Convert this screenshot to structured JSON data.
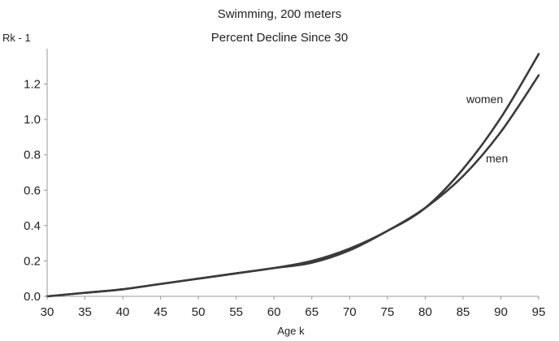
{
  "chart_data": {
    "type": "line",
    "title": "Swimming, 200 meters",
    "subtitle": "Percent Decline Since 30",
    "xlabel": "Age k",
    "ylabel": "Rk - 1",
    "xlim": [
      30,
      95
    ],
    "ylim": [
      0,
      1.4
    ],
    "x_ticks": [
      "30",
      "35",
      "40",
      "45",
      "50",
      "55",
      "60",
      "65",
      "70",
      "75",
      "80",
      "85",
      "90",
      "95"
    ],
    "y_ticks": [
      "0.0",
      "0.2",
      "0.4",
      "0.6",
      "0.8",
      "1.0",
      "1.2"
    ],
    "grid": false,
    "x": [
      30,
      35,
      40,
      45,
      50,
      55,
      60,
      65,
      70,
      75,
      80,
      85,
      90,
      95
    ],
    "series": [
      {
        "name": "women",
        "values": [
          0.0,
          0.02,
          0.04,
          0.07,
          0.1,
          0.13,
          0.16,
          0.2,
          0.27,
          0.37,
          0.5,
          0.72,
          1.01,
          1.37
        ]
      },
      {
        "name": "men",
        "values": [
          0.0,
          0.02,
          0.04,
          0.07,
          0.1,
          0.13,
          0.16,
          0.19,
          0.26,
          0.37,
          0.5,
          0.68,
          0.93,
          1.25
        ]
      }
    ],
    "colors": {
      "line": "#3a3a3a",
      "axis": "#9a9a9a",
      "text": "#222222"
    }
  }
}
